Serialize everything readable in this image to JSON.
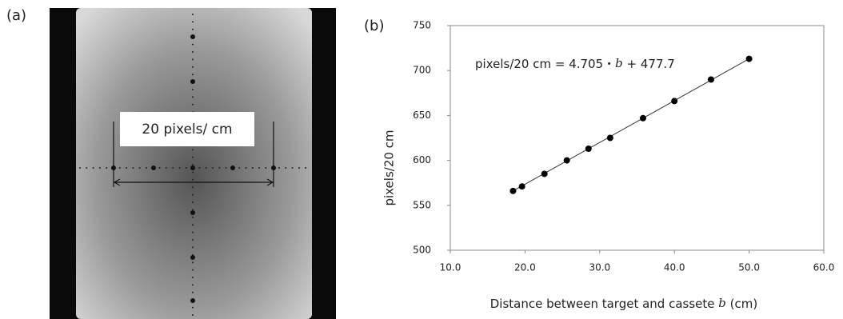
{
  "panel_a": {
    "label": "(a)",
    "annotation": "20 pixels/ cm"
  },
  "chart_data": {
    "type": "scatter",
    "panel_label": "(b)",
    "equation": [
      "pixels/20 cm  = 4.705・",
      "b",
      "+ 477.7"
    ],
    "x_label": [
      "Distance between target and cassete",
      "b",
      "(cm)"
    ],
    "y_label": "pixels/20 cm",
    "x": [
      18.4,
      19.6,
      22.6,
      25.6,
      28.5,
      31.4,
      35.8,
      40.0,
      44.9,
      50.0
    ],
    "y": [
      566,
      571,
      585,
      600,
      613,
      625,
      647,
      666,
      690,
      713
    ],
    "color": "#000000",
    "xlim": [
      10,
      60
    ],
    "xticks": [
      {
        "value": 10,
        "label": "10.0"
      },
      {
        "value": 20,
        "label": "20.0"
      },
      {
        "value": 30,
        "label": "30.0"
      },
      {
        "value": 40,
        "label": "40.0"
      },
      {
        "value": 50,
        "label": "50.0"
      },
      {
        "value": 60,
        "label": "60.0"
      }
    ],
    "ylim": [
      500,
      750
    ],
    "yticks": [
      500,
      550,
      600,
      650,
      700,
      750
    ],
    "trendline": true
  }
}
